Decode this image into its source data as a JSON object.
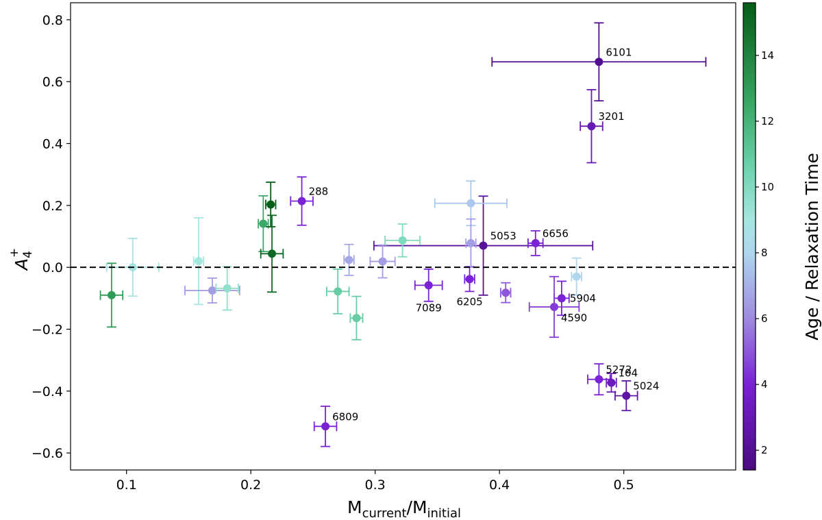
{
  "chart_data": {
    "type": "scatter",
    "xlabel": "M_current/M_initial",
    "xlabel_parts": {
      "main1": "M",
      "sub1": "current",
      "sep": "/",
      "main2": "M",
      "sub2": "initial"
    },
    "ylabel": "A4+",
    "ylabel_parts": {
      "main": "A",
      "sub": "4",
      "sup": "+"
    },
    "xlim": [
      0.055,
      0.59
    ],
    "ylim": [
      -0.655,
      0.855
    ],
    "xticks": [
      0.1,
      0.2,
      0.3,
      0.4,
      0.5
    ],
    "xtick_labels": [
      "0.1",
      "0.2",
      "0.3",
      "0.4",
      "0.5"
    ],
    "yticks": [
      -0.6,
      -0.4,
      -0.2,
      0.0,
      0.2,
      0.4,
      0.6,
      0.8
    ],
    "ytick_labels": [
      "−0.6",
      "−0.4",
      "−0.2",
      "0.0",
      "0.2",
      "0.4",
      "0.6",
      "0.8"
    ],
    "reference_line": {
      "y": 0.0,
      "style": "dashed"
    },
    "colorbar": {
      "label": "Age / Relaxation Time",
      "min": 1.4,
      "max": 15.6,
      "ticks": [
        2,
        4,
        6,
        8,
        10,
        12,
        14
      ],
      "tick_labels": [
        "2",
        "4",
        "6",
        "8",
        "10",
        "12",
        "14"
      ],
      "colormap": [
        [
          1.4,
          "#4a0a80"
        ],
        [
          4.0,
          "#7a22d6"
        ],
        [
          6.0,
          "#9f8ae0"
        ],
        [
          8.0,
          "#aed6ee"
        ],
        [
          9.0,
          "#a6e6e0"
        ],
        [
          10.5,
          "#6fd4b0"
        ],
        [
          12.5,
          "#3aa866"
        ],
        [
          15.6,
          "#045c15"
        ]
      ]
    },
    "points": [
      {
        "label": "6101",
        "x": 0.48,
        "y": 0.664,
        "xerr": [
          0.086,
          0.086
        ],
        "yerr": [
          0.126,
          0.126
        ],
        "c": 1.8,
        "label_pos": "right-up"
      },
      {
        "label": "3201",
        "x": 0.474,
        "y": 0.456,
        "xerr": [
          0.009,
          0.009
        ],
        "yerr": [
          0.118,
          0.118
        ],
        "c": 3.0,
        "label_pos": "right-up"
      },
      {
        "label": "288",
        "x": 0.241,
        "y": 0.214,
        "xerr": [
          0.009,
          0.009
        ],
        "yerr": [
          0.078,
          0.078
        ],
        "c": 4.0,
        "label_pos": "right-up"
      },
      {
        "label": "5053",
        "x": 0.387,
        "y": 0.07,
        "xerr": [
          0.088,
          0.088
        ],
        "yerr": [
          0.16,
          0.16
        ],
        "c": 2.2,
        "label_pos": "right-up"
      },
      {
        "label": "6656",
        "x": 0.429,
        "y": 0.078,
        "xerr": [
          0.006,
          0.006
        ],
        "yerr": [
          0.04,
          0.04
        ],
        "c": 4.0,
        "label_pos": "right-up"
      },
      {
        "label": "7089",
        "x": 0.343,
        "y": -0.058,
        "xerr": [
          0.011,
          0.011
        ],
        "yerr": [
          0.052,
          0.052
        ],
        "c": 4.0,
        "label_pos": "below"
      },
      {
        "label": "6205",
        "x": 0.376,
        "y": -0.038,
        "xerr": [
          0.004,
          0.004
        ],
        "yerr": [
          0.04,
          0.04
        ],
        "c": 4.0,
        "label_pos": "below"
      },
      {
        "label": "5904",
        "x": 0.45,
        "y": -0.1,
        "xerr": [
          0.006,
          0.006
        ],
        "yerr": [
          0.055,
          0.055
        ],
        "c": 4.0,
        "label_pos": "right"
      },
      {
        "label": "4590",
        "x": 0.444,
        "y": -0.128,
        "xerr": [
          0.02,
          0.02
        ],
        "yerr": [
          0.098,
          0.098
        ],
        "c": 4.5,
        "label_pos": "right-down"
      },
      {
        "label": "5272",
        "x": 0.48,
        "y": -0.362,
        "xerr": [
          0.009,
          0.009
        ],
        "yerr": [
          0.05,
          0.05
        ],
        "c": 4.0,
        "label_pos": "right-up"
      },
      {
        "label": "104",
        "x": 0.49,
        "y": -0.373,
        "xerr": [
          0.004,
          0.004
        ],
        "yerr": [
          0.03,
          0.03
        ],
        "c": 3.2,
        "label_pos": "right-up"
      },
      {
        "label": "5024",
        "x": 0.502,
        "y": -0.415,
        "xerr": [
          0.009,
          0.009
        ],
        "yerr": [
          0.048,
          0.048
        ],
        "c": 2.5,
        "label_pos": "right-up"
      },
      {
        "label": "6809",
        "x": 0.26,
        "y": -0.514,
        "xerr": [
          0.009,
          0.009
        ],
        "yerr": [
          0.065,
          0.065
        ],
        "c": 4.0,
        "label_pos": "right-up"
      },
      {
        "label": "",
        "x": 0.405,
        "y": -0.082,
        "xerr": [
          0.004,
          0.004
        ],
        "yerr": [
          0.032,
          0.032
        ],
        "c": 5.0
      },
      {
        "label": "",
        "x": 0.088,
        "y": -0.09,
        "xerr": [
          0.009,
          0.009
        ],
        "yerr": [
          0.103,
          0.103
        ],
        "c": 13.0
      },
      {
        "label": "",
        "x": 0.105,
        "y": 0.0,
        "xerr": [
          0.021,
          0.021
        ],
        "yerr": [
          0.093,
          0.093
        ],
        "c": 8.9
      },
      {
        "label": "",
        "x": 0.158,
        "y": 0.02,
        "xerr": [
          0.004,
          0.004
        ],
        "yerr": [
          0.14,
          0.14
        ],
        "c": 9.0
      },
      {
        "label": "",
        "x": 0.169,
        "y": -0.075,
        "xerr": [
          0.022,
          0.022
        ],
        "yerr": [
          0.04,
          0.04
        ],
        "c": 6.5
      },
      {
        "label": "",
        "x": 0.181,
        "y": -0.068,
        "xerr": [
          0.009,
          0.009
        ],
        "yerr": [
          0.07,
          0.07
        ],
        "c": 9.6
      },
      {
        "label": "",
        "x": 0.21,
        "y": 0.141,
        "xerr": [
          0.004,
          0.004
        ],
        "yerr": [
          0.09,
          0.09
        ],
        "c": 12.5
      },
      {
        "label": "",
        "x": 0.216,
        "y": 0.203,
        "xerr": [
          0.004,
          0.004
        ],
        "yerr": [
          0.072,
          0.072
        ],
        "c": 15.5
      },
      {
        "label": "",
        "x": 0.217,
        "y": 0.044,
        "xerr": [
          0.009,
          0.009
        ],
        "yerr": [
          0.124,
          0.124
        ],
        "c": 15.0
      },
      {
        "label": "",
        "x": 0.27,
        "y": -0.078,
        "xerr": [
          0.009,
          0.009
        ],
        "yerr": [
          0.072,
          0.072
        ],
        "c": 10.8
      },
      {
        "label": "",
        "x": 0.279,
        "y": 0.024,
        "xerr": [
          0.004,
          0.004
        ],
        "yerr": [
          0.05,
          0.05
        ],
        "c": 6.8
      },
      {
        "label": "",
        "x": 0.285,
        "y": -0.164,
        "xerr": [
          0.005,
          0.005
        ],
        "yerr": [
          0.07,
          0.07
        ],
        "c": 10.8
      },
      {
        "label": "",
        "x": 0.306,
        "y": 0.019,
        "xerr": [
          0.01,
          0.01
        ],
        "yerr": [
          0.053,
          0.053
        ],
        "c": 6.5
      },
      {
        "label": "",
        "x": 0.322,
        "y": 0.087,
        "xerr": [
          0.014,
          0.014
        ],
        "yerr": [
          0.053,
          0.053
        ],
        "c": 10.0
      },
      {
        "label": "",
        "x": 0.377,
        "y": 0.207,
        "xerr": [
          0.029,
          0.029
        ],
        "yerr": [
          0.072,
          0.072
        ],
        "c": 7.6
      },
      {
        "label": "",
        "x": 0.377,
        "y": 0.078,
        "xerr": [
          0.004,
          0.004
        ],
        "yerr": [
          0.078,
          0.078
        ],
        "c": 6.5
      },
      {
        "label": "",
        "x": 0.462,
        "y": -0.03,
        "xerr": [
          0.004,
          0.004
        ],
        "yerr": [
          0.06,
          0.06
        ],
        "c": 8.0
      }
    ]
  }
}
